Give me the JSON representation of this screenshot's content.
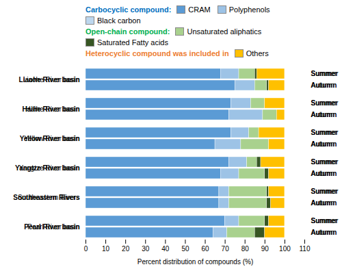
{
  "chart_data": {
    "type": "bar",
    "orientation": "horizontal",
    "stacked": true,
    "categories": [
      "Liaohe River basin",
      "Haihe River basin",
      "Yellow River basin",
      "Yangtze River basin",
      "Southeastern Rivers",
      "Pearl River basin"
    ],
    "groups": [
      "Summer",
      "Autumn"
    ],
    "series": [
      {
        "name": "CRAM",
        "color": "#5b9bd5",
        "values": {
          "Summer": [
            68,
            73,
            73,
            72,
            67,
            70
          ],
          "Autumn": [
            75,
            72,
            65,
            68,
            67,
            64
          ]
        }
      },
      {
        "name": "Polyphenols",
        "color": "#9dc3e6",
        "values": {
          "Summer": [
            9,
            10,
            9,
            9,
            5,
            7
          ],
          "Autumn": [
            10,
            17,
            13,
            9,
            5,
            7
          ]
        }
      },
      {
        "name": "Black carbon",
        "color": "#bdd7ee",
        "values": {
          "Summer": [
            0,
            0,
            0,
            0,
            0,
            0
          ],
          "Autumn": [
            0,
            0,
            0,
            0,
            0,
            0
          ]
        }
      },
      {
        "name": "Unsaturated aliphatics",
        "color": "#a9d18e",
        "values": {
          "Summer": [
            8,
            7,
            5,
            5,
            19,
            13
          ],
          "Autumn": [
            6,
            7,
            14,
            13,
            19,
            14
          ]
        }
      },
      {
        "name": "Saturated Fatty acids",
        "color": "#375623",
        "values": {
          "Summer": [
            1,
            0,
            0,
            2,
            1,
            2
          ],
          "Autumn": [
            1,
            0,
            0,
            2,
            2,
            5
          ]
        }
      },
      {
        "name": "Others",
        "color": "#ffc000",
        "values": {
          "Summer": [
            14,
            10,
            13,
            12,
            8,
            8
          ],
          "Autumn": [
            8,
            4,
            8,
            8,
            7,
            10
          ]
        }
      }
    ],
    "legend": "top",
    "legend_headings": [
      {
        "label": "Carbocyclic compound:",
        "color": "#0070c0",
        "series": [
          "CRAM",
          "Polyphenols",
          "Black carbon"
        ]
      },
      {
        "label": "Open-chain compound:",
        "color": "#00b050",
        "series": [
          "Unsaturated aliphatics",
          "Saturated Fatty acids"
        ]
      },
      {
        "label": "Heterocyclic compound was included in",
        "color": "#ed7d31",
        "series": [
          "Others"
        ]
      }
    ],
    "xlabel": "Percent distribution of compounds (%)",
    "xlim": [
      0,
      110
    ],
    "xticks": [
      0,
      10,
      20,
      30,
      40,
      50,
      60,
      70,
      80,
      90,
      100,
      110
    ]
  }
}
